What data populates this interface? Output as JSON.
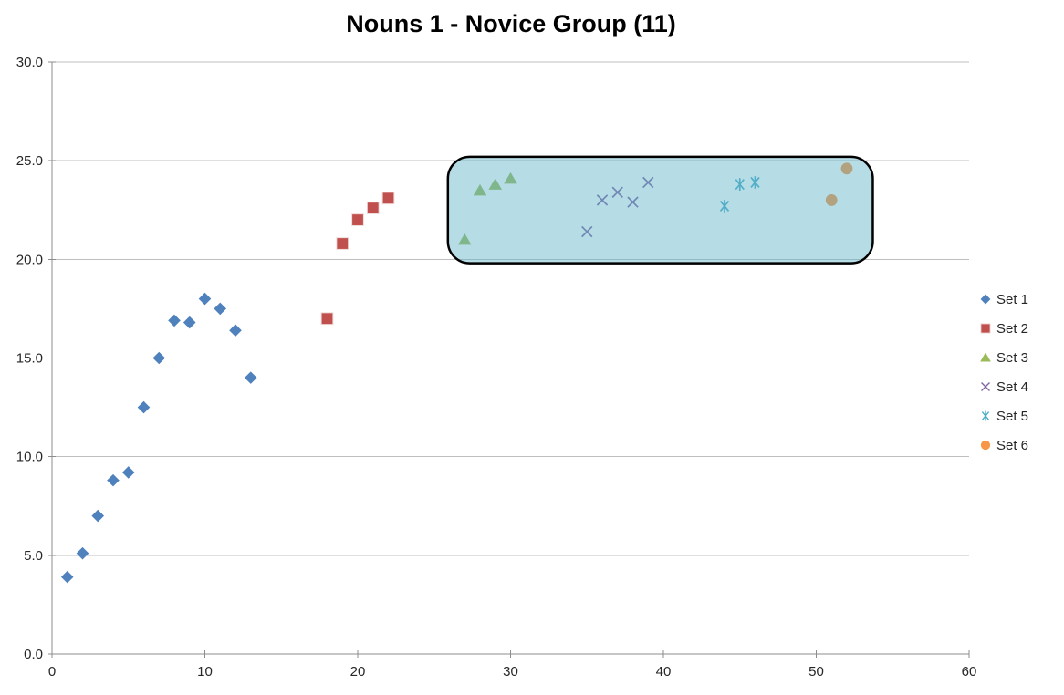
{
  "chart_data": {
    "type": "scatter",
    "title": "Nouns 1 - Novice Group (11)",
    "x_axis": {
      "min": 0,
      "max": 60,
      "tick_interval": 10,
      "tick_labels": [
        "0",
        "10",
        "20",
        "30",
        "40",
        "50",
        "60"
      ]
    },
    "y_axis": {
      "min": 0,
      "max": 30,
      "tick_interval": 5,
      "tick_labels": [
        "0.0",
        "5.0",
        "10.0",
        "15.0",
        "20.0",
        "25.0",
        "30.0"
      ]
    },
    "grid": "horizontal",
    "legend_position": "right",
    "series": [
      {
        "name": "Set 1",
        "marker": "diamond",
        "color": "#4F81BD",
        "points": [
          [
            1,
            3.9
          ],
          [
            2,
            5.1
          ],
          [
            3,
            7.0
          ],
          [
            4,
            8.8
          ],
          [
            5,
            9.2
          ],
          [
            6,
            12.5
          ],
          [
            7,
            15.0
          ],
          [
            8,
            16.9
          ],
          [
            9,
            16.8
          ],
          [
            10,
            18.0
          ],
          [
            11,
            17.5
          ],
          [
            12,
            16.4
          ],
          [
            13,
            14.0
          ]
        ]
      },
      {
        "name": "Set 2",
        "marker": "square",
        "color": "#C0504D",
        "points": [
          [
            18,
            17.0
          ],
          [
            19,
            20.8
          ],
          [
            20,
            22.0
          ],
          [
            21,
            22.6
          ],
          [
            22,
            23.1
          ]
        ]
      },
      {
        "name": "Set 3",
        "marker": "triangle",
        "color": "#9BBB59",
        "points": [
          [
            27,
            21.0
          ],
          [
            28,
            23.5
          ],
          [
            29,
            23.8
          ],
          [
            30,
            24.1
          ]
        ]
      },
      {
        "name": "Set 4",
        "marker": "x",
        "color": "#8064A2",
        "points": [
          [
            35,
            21.4
          ],
          [
            36,
            23.0
          ],
          [
            37,
            23.4
          ],
          [
            38,
            22.9
          ],
          [
            39,
            23.9
          ]
        ]
      },
      {
        "name": "Set 5",
        "marker": "asterisk",
        "color": "#4BACC6",
        "points": [
          [
            44,
            22.7
          ],
          [
            45,
            23.8
          ],
          [
            46,
            23.9
          ]
        ]
      },
      {
        "name": "Set 6",
        "marker": "circle",
        "color": "#F79646",
        "points": [
          [
            51,
            23.0
          ],
          [
            52,
            24.6
          ]
        ]
      }
    ],
    "annotation_box": {
      "x_min": 25.9,
      "x_max": 53.7,
      "y_min": 19.8,
      "y_max": 25.2,
      "fill": "#5DB2C7",
      "fill_opacity": 0.45,
      "border_color": "#000000",
      "border_width": 2.5,
      "corner_radius": 24
    }
  },
  "styles": {
    "grid_color": "#BFBFBF",
    "axis_color": "#8C8C8C",
    "label_color": "#262626",
    "title_color": "#000000",
    "background": "#FFFFFF"
  }
}
